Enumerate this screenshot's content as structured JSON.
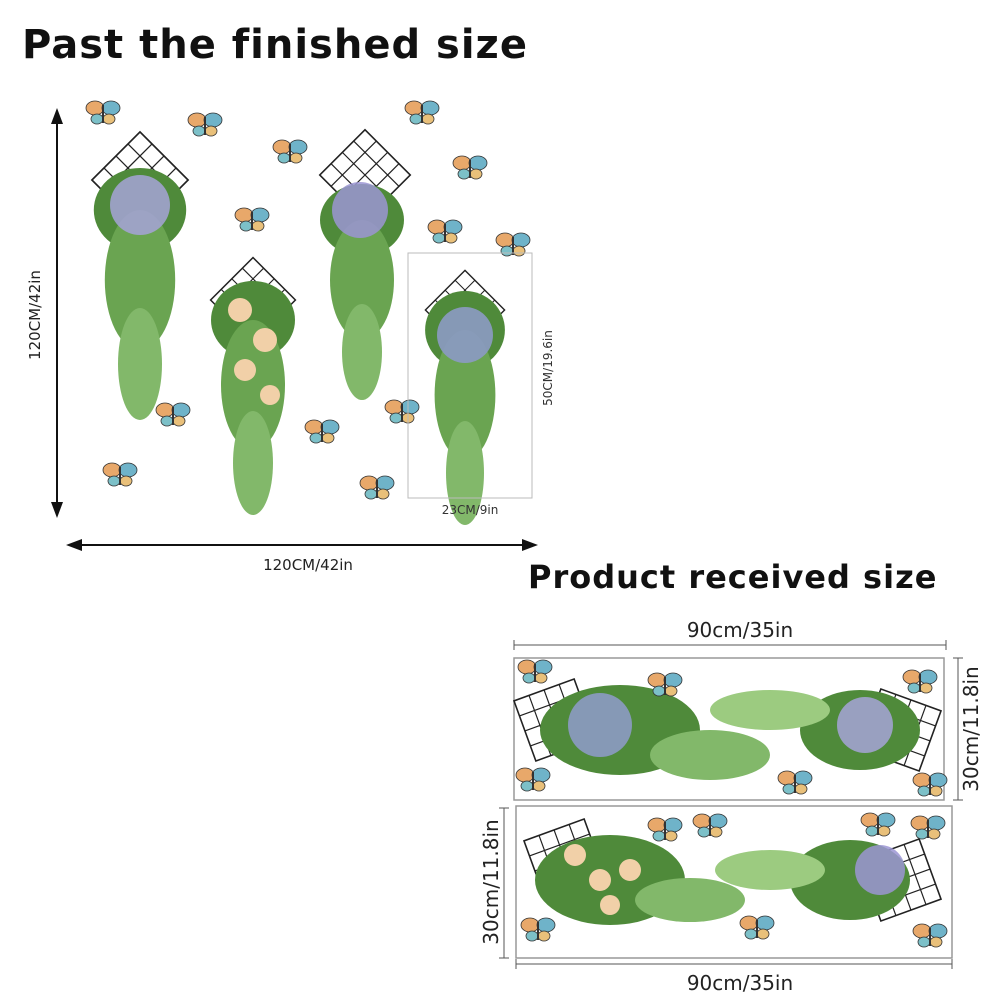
{
  "finished": {
    "title": "Past the finished size",
    "height_label": "120CM/42in",
    "width_label": "120CM/42in",
    "item_height_label": "50CM/19.6in",
    "item_width_label": "23CM/9in"
  },
  "received": {
    "title": "Product received size",
    "top_sheet": {
      "width_label": "90cm/35in",
      "height_label": "30cm/11.8in"
    },
    "bottom_sheet": {
      "width_label": "90cm/35in",
      "height_label": "30cm/11.8in"
    }
  }
}
